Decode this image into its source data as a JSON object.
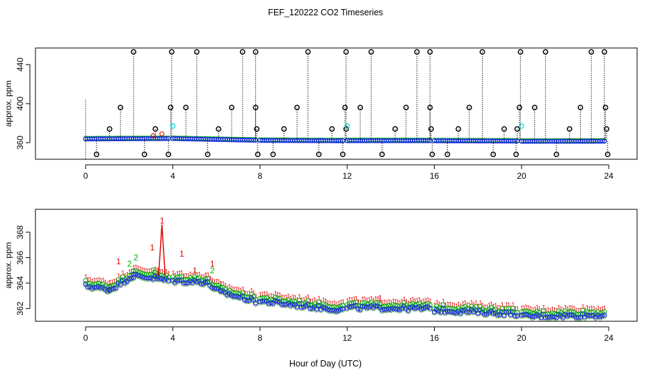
{
  "title": "FEF_120222  CO2 Timeseries",
  "xlabel": "Hour of Day (UTC)",
  "colors": {
    "flag": "#000000",
    "blue_series": "#1a1aff",
    "green_series": "#00b000",
    "red_series": "#e00000",
    "cyan_series": "#00e0e0",
    "orange_series": "#ff9900",
    "frame": "#000000",
    "background": "#ffffff"
  },
  "chart_data": [
    {
      "type": "scatter",
      "name": "top-panel",
      "ylabel": "approx. ppm",
      "xlim": [
        -2.3,
        25.3
      ],
      "ylim": [
        343,
        457
      ],
      "xticks": [
        "0",
        "4",
        "8",
        "12",
        "16",
        "20",
        "24"
      ],
      "xtick_values": [
        0,
        4,
        8,
        12,
        16,
        20,
        24
      ],
      "yticks": [
        "360",
        "400",
        "440"
      ],
      "ytick_values": [
        360,
        400,
        440
      ],
      "base_segments": [
        {
          "x0": 0.0,
          "x1": 3.8,
          "y0": 363.8,
          "y1": 364.2
        },
        {
          "x0": 4.0,
          "x1": 7.8,
          "y0": 364.2,
          "y1": 362.5
        },
        {
          "x0": 8.0,
          "x1": 11.8,
          "y0": 362.3,
          "y1": 361.9
        },
        {
          "x0": 12.0,
          "x1": 15.8,
          "y0": 362.0,
          "y1": 362.0
        },
        {
          "x0": 16.0,
          "x1": 19.8,
          "y0": 361.9,
          "y1": 361.6
        },
        {
          "x0": 20.0,
          "x1": 23.8,
          "y0": 361.4,
          "y1": 361.5
        }
      ],
      "flag_points": [
        {
          "x": 0.5,
          "y": 348
        },
        {
          "x": 1.1,
          "y": 374
        },
        {
          "x": 1.6,
          "y": 396
        },
        {
          "x": 2.2,
          "y": 453
        },
        {
          "x": 2.7,
          "y": 348
        },
        {
          "x": 3.2,
          "y": 374
        },
        {
          "x": 3.8,
          "y": 348
        },
        {
          "x": 3.9,
          "y": 396
        },
        {
          "x": 3.95,
          "y": 453
        },
        {
          "x": 4.6,
          "y": 396
        },
        {
          "x": 5.1,
          "y": 453
        },
        {
          "x": 5.6,
          "y": 348
        },
        {
          "x": 6.1,
          "y": 374
        },
        {
          "x": 6.7,
          "y": 396
        },
        {
          "x": 7.2,
          "y": 453
        },
        {
          "x": 7.8,
          "y": 453
        },
        {
          "x": 7.8,
          "y": 396
        },
        {
          "x": 7.85,
          "y": 374
        },
        {
          "x": 7.9,
          "y": 348
        },
        {
          "x": 8.6,
          "y": 348
        },
        {
          "x": 9.1,
          "y": 374
        },
        {
          "x": 9.7,
          "y": 396
        },
        {
          "x": 10.2,
          "y": 453
        },
        {
          "x": 10.7,
          "y": 348
        },
        {
          "x": 11.3,
          "y": 374
        },
        {
          "x": 11.8,
          "y": 348
        },
        {
          "x": 11.9,
          "y": 396
        },
        {
          "x": 11.95,
          "y": 453
        },
        {
          "x": 11.95,
          "y": 374
        },
        {
          "x": 12.6,
          "y": 396
        },
        {
          "x": 13.1,
          "y": 453
        },
        {
          "x": 13.6,
          "y": 348
        },
        {
          "x": 14.2,
          "y": 374
        },
        {
          "x": 14.7,
          "y": 396
        },
        {
          "x": 15.2,
          "y": 453
        },
        {
          "x": 15.8,
          "y": 453
        },
        {
          "x": 15.8,
          "y": 396
        },
        {
          "x": 15.85,
          "y": 374
        },
        {
          "x": 15.9,
          "y": 348
        },
        {
          "x": 16.6,
          "y": 348
        },
        {
          "x": 17.1,
          "y": 374
        },
        {
          "x": 17.6,
          "y": 396
        },
        {
          "x": 18.2,
          "y": 453
        },
        {
          "x": 18.7,
          "y": 348
        },
        {
          "x": 19.2,
          "y": 374
        },
        {
          "x": 19.75,
          "y": 348
        },
        {
          "x": 19.8,
          "y": 374
        },
        {
          "x": 19.9,
          "y": 396
        },
        {
          "x": 19.95,
          "y": 453
        },
        {
          "x": 20.6,
          "y": 396
        },
        {
          "x": 21.1,
          "y": 453
        },
        {
          "x": 21.6,
          "y": 348
        },
        {
          "x": 22.2,
          "y": 374
        },
        {
          "x": 22.7,
          "y": 396
        },
        {
          "x": 23.2,
          "y": 453
        },
        {
          "x": 23.8,
          "y": 453
        },
        {
          "x": 23.85,
          "y": 396
        },
        {
          "x": 23.9,
          "y": 374
        },
        {
          "x": 23.95,
          "y": 348
        }
      ],
      "cyan_points": [
        {
          "x": 4.0,
          "y": 377
        },
        {
          "x": 12.0,
          "y": 377
        },
        {
          "x": 20.0,
          "y": 377
        }
      ],
      "red_points": [
        {
          "x": 3.1,
          "y": 367
        },
        {
          "x": 3.5,
          "y": 369
        }
      ]
    },
    {
      "type": "scatter",
      "name": "bottom-panel",
      "ylabel": "approx. ppm",
      "xlim": [
        -2.3,
        25.3
      ],
      "ylim": [
        361.0,
        369.8
      ],
      "xticks": [
        "0",
        "4",
        "8",
        "12",
        "16",
        "20",
        "24"
      ],
      "xtick_values": [
        0,
        4,
        8,
        12,
        16,
        20,
        24
      ],
      "yticks": [
        "362",
        "364",
        "366",
        "368"
      ],
      "ytick_values": [
        362,
        364,
        366,
        368
      ],
      "label_marker": "1",
      "green_label_marker": "2",
      "base_segments": [
        {
          "x0": 0.0,
          "x1": 1.1,
          "y0": 363.8,
          "y1": 363.5
        },
        {
          "x0": 1.1,
          "x1": 2.2,
          "y0": 363.5,
          "y1": 364.6
        },
        {
          "x0": 2.2,
          "x1": 3.3,
          "y0": 364.6,
          "y1": 364.4
        },
        {
          "x0": 3.3,
          "x1": 3.8,
          "y0": 364.4,
          "y1": 364.2
        },
        {
          "x0": 4.0,
          "x1": 5.5,
          "y0": 364.2,
          "y1": 364.1
        },
        {
          "x0": 5.5,
          "x1": 6.2,
          "y0": 364.1,
          "y1": 363.3
        },
        {
          "x0": 6.2,
          "x1": 7.8,
          "y0": 363.3,
          "y1": 362.6
        },
        {
          "x0": 8.0,
          "x1": 11.8,
          "y0": 362.6,
          "y1": 361.9
        },
        {
          "x0": 12.0,
          "x1": 15.8,
          "y0": 362.1,
          "y1": 362.0
        },
        {
          "x0": 16.0,
          "x1": 19.8,
          "y0": 361.9,
          "y1": 361.6
        },
        {
          "x0": 20.0,
          "x1": 23.8,
          "y0": 361.4,
          "y1": 361.5
        }
      ],
      "red_spikes": [
        {
          "x": 1.5,
          "y": 365.7
        },
        {
          "x": 3.05,
          "y": 366.8
        },
        {
          "x": 3.5,
          "y": 368.9
        },
        {
          "x": 4.4,
          "y": 366.3
        },
        {
          "x": 5.0,
          "y": 365.0
        },
        {
          "x": 5.8,
          "y": 365.5
        },
        {
          "x": 13.5,
          "y": 362.8
        }
      ],
      "green_spikes": [
        {
          "x": 2.0,
          "y": 365.5
        },
        {
          "x": 2.3,
          "y": 366.0
        },
        {
          "x": 3.1,
          "y": 365.0
        },
        {
          "x": 5.8,
          "y": 365.0
        }
      ]
    }
  ]
}
